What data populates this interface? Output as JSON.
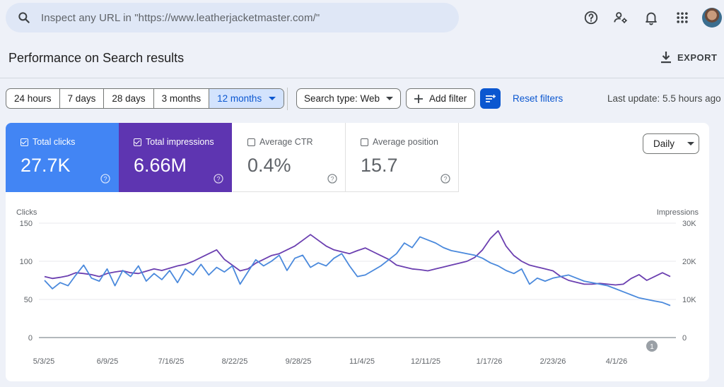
{
  "search": {
    "placeholder": "Inspect any URL in \"https://www.leatherjacketmaster.com/\""
  },
  "header": {
    "title": "Performance on Search results",
    "export_label": "EXPORT"
  },
  "date_ranges": [
    "24 hours",
    "7 days",
    "28 days",
    "3 months",
    "12 months"
  ],
  "selected_range": "12 months",
  "filters": {
    "search_type": "Search type: Web",
    "add_filter": "Add filter",
    "reset": "Reset filters",
    "last_update": "Last update: 5.5 hours ago"
  },
  "metrics": [
    {
      "label": "Total clicks",
      "value": "27.7K",
      "checked": true,
      "color": "#4285f4"
    },
    {
      "label": "Total impressions",
      "value": "6.66M",
      "checked": true,
      "color": "#5e35b1"
    },
    {
      "label": "Average CTR",
      "value": "0.4%",
      "checked": false
    },
    {
      "label": "Average position",
      "value": "15.7",
      "checked": false
    }
  ],
  "granularity": "Daily",
  "chart_data": {
    "type": "line",
    "left_axis_label": "Clicks",
    "right_axis_label": "Impressions",
    "left_ticks": [
      "150",
      "100",
      "50",
      "0"
    ],
    "right_ticks": [
      "30K",
      "20K",
      "10K",
      "0"
    ],
    "ylim_clicks": [
      0,
      150
    ],
    "ylim_impressions": [
      0,
      30000
    ],
    "x_ticks": [
      "5/3/25",
      "6/9/25",
      "7/16/25",
      "8/22/25",
      "9/28/25",
      "11/4/25",
      "12/11/25",
      "1/17/26",
      "2/23/26",
      "4/1/26"
    ],
    "annotation": "1",
    "series": [
      {
        "name": "Clicks",
        "color": "#4a89dc",
        "axis": "left",
        "values": [
          75,
          64,
          72,
          68,
          82,
          95,
          78,
          74,
          90,
          68,
          88,
          80,
          94,
          74,
          84,
          76,
          88,
          72,
          90,
          82,
          96,
          82,
          92,
          86,
          94,
          70,
          86,
          102,
          94,
          100,
          108,
          88,
          104,
          108,
          92,
          98,
          94,
          104,
          110,
          94,
          80,
          82,
          88,
          94,
          102,
          110,
          124,
          118,
          132,
          128,
          124,
          118,
          114,
          112,
          110,
          108,
          104,
          98,
          94,
          88,
          84,
          90,
          70,
          78,
          74,
          78,
          80,
          82,
          78,
          74,
          72,
          70,
          68,
          64,
          60,
          56,
          52,
          50,
          48,
          46,
          42
        ]
      },
      {
        "name": "Impressions",
        "color": "#6b3fb0",
        "axis": "right",
        "values": [
          16000,
          15500,
          15800,
          16200,
          17000,
          16800,
          16500,
          16000,
          16800,
          17200,
          17500,
          17000,
          16800,
          17400,
          18000,
          17600,
          18200,
          18800,
          19200,
          20000,
          21000,
          22000,
          23000,
          20500,
          19000,
          17500,
          18000,
          19500,
          20500,
          21500,
          22000,
          23000,
          24000,
          25500,
          27000,
          25500,
          24000,
          23000,
          22500,
          22000,
          22800,
          23500,
          22500,
          21500,
          20500,
          19000,
          18500,
          18000,
          17800,
          17500,
          18000,
          18500,
          19000,
          19500,
          20000,
          21000,
          23000,
          26000,
          28000,
          24000,
          21500,
          20000,
          19000,
          18500,
          18000,
          17500,
          16000,
          15000,
          14500,
          14000,
          14000,
          14200,
          14000,
          13800,
          14000,
          15500,
          16500,
          15000,
          16000,
          17000,
          16000
        ]
      }
    ]
  }
}
